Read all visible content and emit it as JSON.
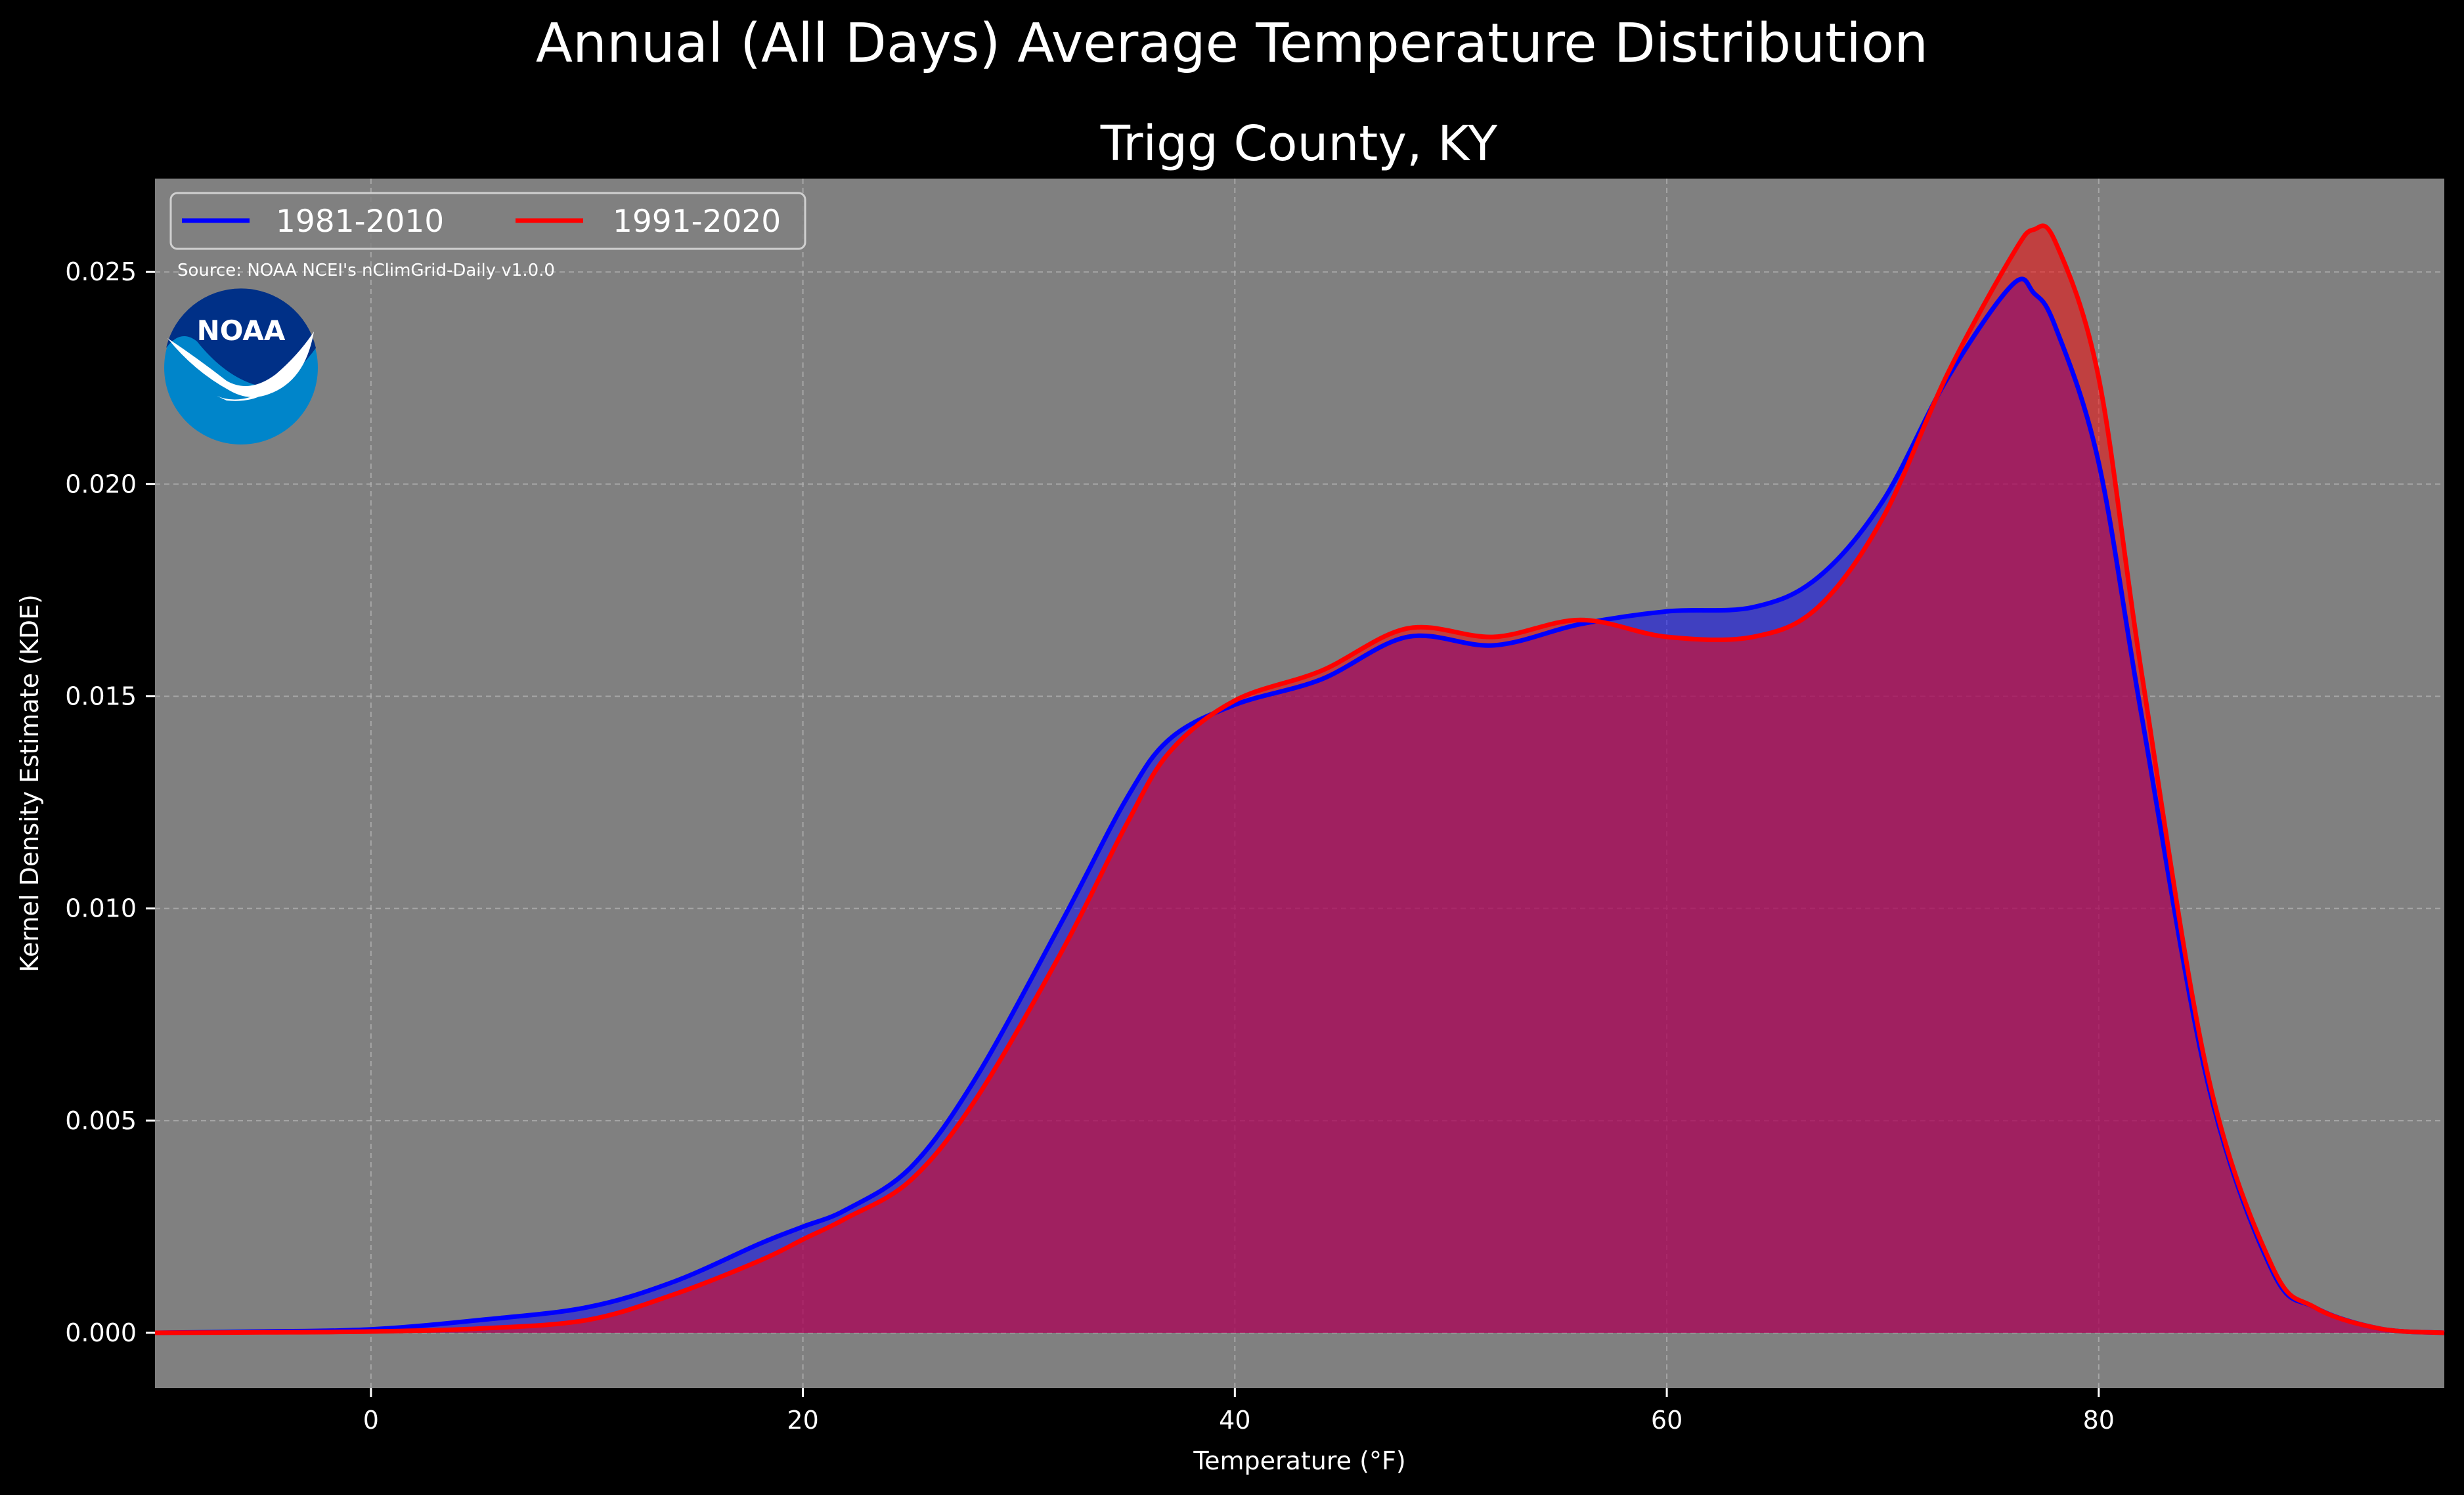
{
  "page": {
    "title": "Annual (All Days) Average Temperature Distribution",
    "subtitle": "Trigg County, KY",
    "source": "Source: NOAA NCEI's nClimGrid-Daily v1.0.0",
    "logo_text": "NOAA"
  },
  "colors": {
    "background": "#000000",
    "plot_background": "#808080",
    "series_1981": "#0000ff",
    "series_1991": "#ff0000",
    "overlap_fill": "#9c1d5c"
  },
  "chart_data": {
    "type": "area",
    "title": "Trigg County, KY",
    "xlabel": "Temperature (°F)",
    "ylabel": "Kernel Density Estimate (KDE)",
    "xlim": [
      -10,
      96
    ],
    "ylim": [
      -0.0013,
      0.0272
    ],
    "xticks": [
      0,
      20,
      40,
      60,
      80
    ],
    "yticks": [
      0.0,
      0.005,
      0.01,
      0.015,
      0.02,
      0.025
    ],
    "xtick_labels": [
      "0",
      "20",
      "40",
      "60",
      "80"
    ],
    "ytick_labels": [
      "0.000",
      "0.005",
      "0.010",
      "0.015",
      "0.020",
      "0.025"
    ],
    "grid": true,
    "legend_position": "top-left",
    "x": [
      -10,
      -5,
      0,
      5,
      10,
      14,
      18,
      20,
      22,
      25,
      28,
      32,
      35,
      37,
      40,
      44,
      48,
      52,
      56,
      60,
      64,
      67,
      70,
      73,
      76,
      77,
      78,
      80,
      82,
      85,
      88,
      90,
      93,
      96
    ],
    "series": [
      {
        "name": "1981-2010",
        "values": [
          0.0,
          3e-05,
          8e-05,
          0.0003,
          0.0006,
          0.0012,
          0.0021,
          0.0025,
          0.0029,
          0.0039,
          0.006,
          0.0097,
          0.0126,
          0.014,
          0.0148,
          0.0154,
          0.0164,
          0.0162,
          0.0167,
          0.017,
          0.0171,
          0.0178,
          0.0196,
          0.0225,
          0.0247,
          0.0245,
          0.0237,
          0.0205,
          0.0145,
          0.006,
          0.0015,
          0.0006,
          0.0001,
          0.0
        ]
      },
      {
        "name": "1991-2020",
        "values": [
          0.0,
          1e-05,
          3e-05,
          0.0001,
          0.0003,
          0.0009,
          0.0017,
          0.0022,
          0.0027,
          0.0036,
          0.0055,
          0.009,
          0.012,
          0.0137,
          0.0149,
          0.0156,
          0.0166,
          0.0164,
          0.0168,
          0.0164,
          0.0164,
          0.0171,
          0.0192,
          0.0226,
          0.0254,
          0.026,
          0.0257,
          0.0225,
          0.0155,
          0.0062,
          0.0016,
          0.0006,
          0.0001,
          0.0
        ]
      }
    ]
  }
}
